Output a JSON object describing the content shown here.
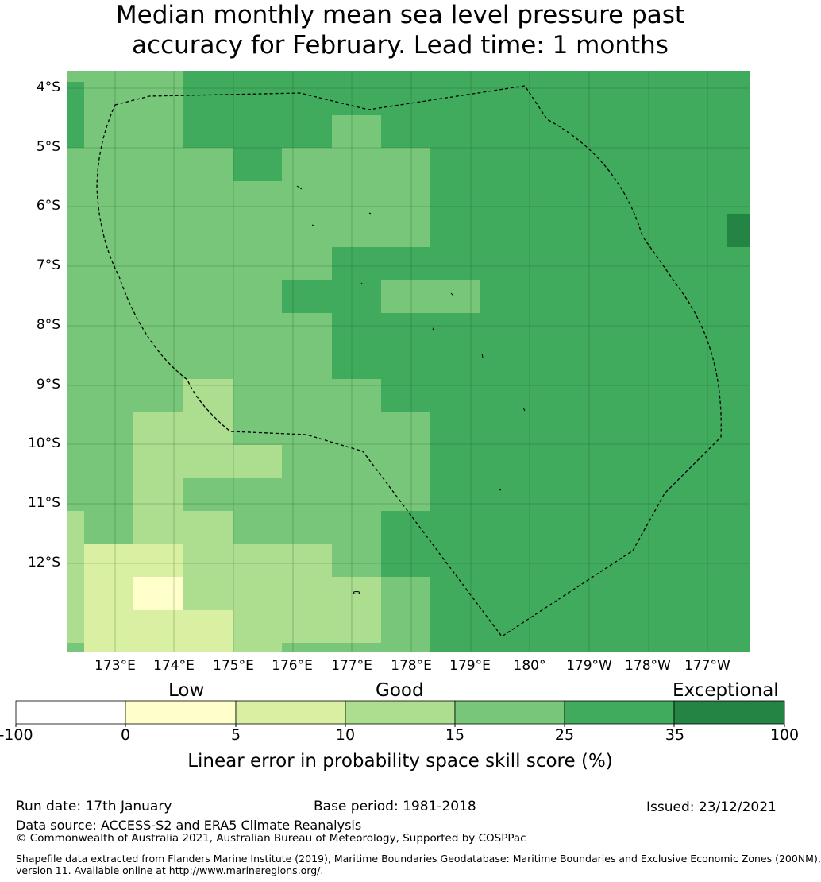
{
  "title": {
    "line1": "Median monthly mean sea level pressure past",
    "line2": "accuracy for February. Lead time: 1 months"
  },
  "map": {
    "lat_labels": [
      "4°S",
      "5°S",
      "6°S",
      "7°S",
      "8°S",
      "9°S",
      "10°S",
      "11°S",
      "12°S"
    ],
    "lon_labels": [
      "173°E",
      "174°E",
      "175°E",
      "176°E",
      "177°E",
      "178°E",
      "179°E",
      "180°",
      "179°W",
      "178°W",
      "177°W"
    ],
    "boundary_color": "#000000"
  },
  "legend": {
    "category_labels": [
      "Low",
      "Good",
      "Exceptional"
    ],
    "tick_labels": [
      "-100",
      "0",
      "5",
      "10",
      "15",
      "25",
      "35",
      "100"
    ],
    "colors": [
      "#ffffff",
      "#ffffcc",
      "#d9f0a3",
      "#addd8e",
      "#78c679",
      "#41ab5d",
      "#238443"
    ],
    "axis_label": "Linear error in probability space skill score (%)"
  },
  "footer": {
    "run_date": "Run date: 17th January",
    "base_period": "Base period: 1981-2018",
    "issued": "Issued: 23/12/2021",
    "data_source": "Data source: ACCESS-S2 and ERA5 Climate Reanalysis",
    "copyright": "© Commonwealth of Australia 2021, Australian Bureau of Meteorology, Supported by COSPPac",
    "shapefile_line1": "Shapefile data extracted from Flanders Marine Institute (2019), Maritime Boundaries Geodatabase: Maritime Boundaries and Exclusive Economic Zones (200NM),",
    "shapefile_line2": "version 11. Available online at http://www.marineregions.org/."
  }
}
